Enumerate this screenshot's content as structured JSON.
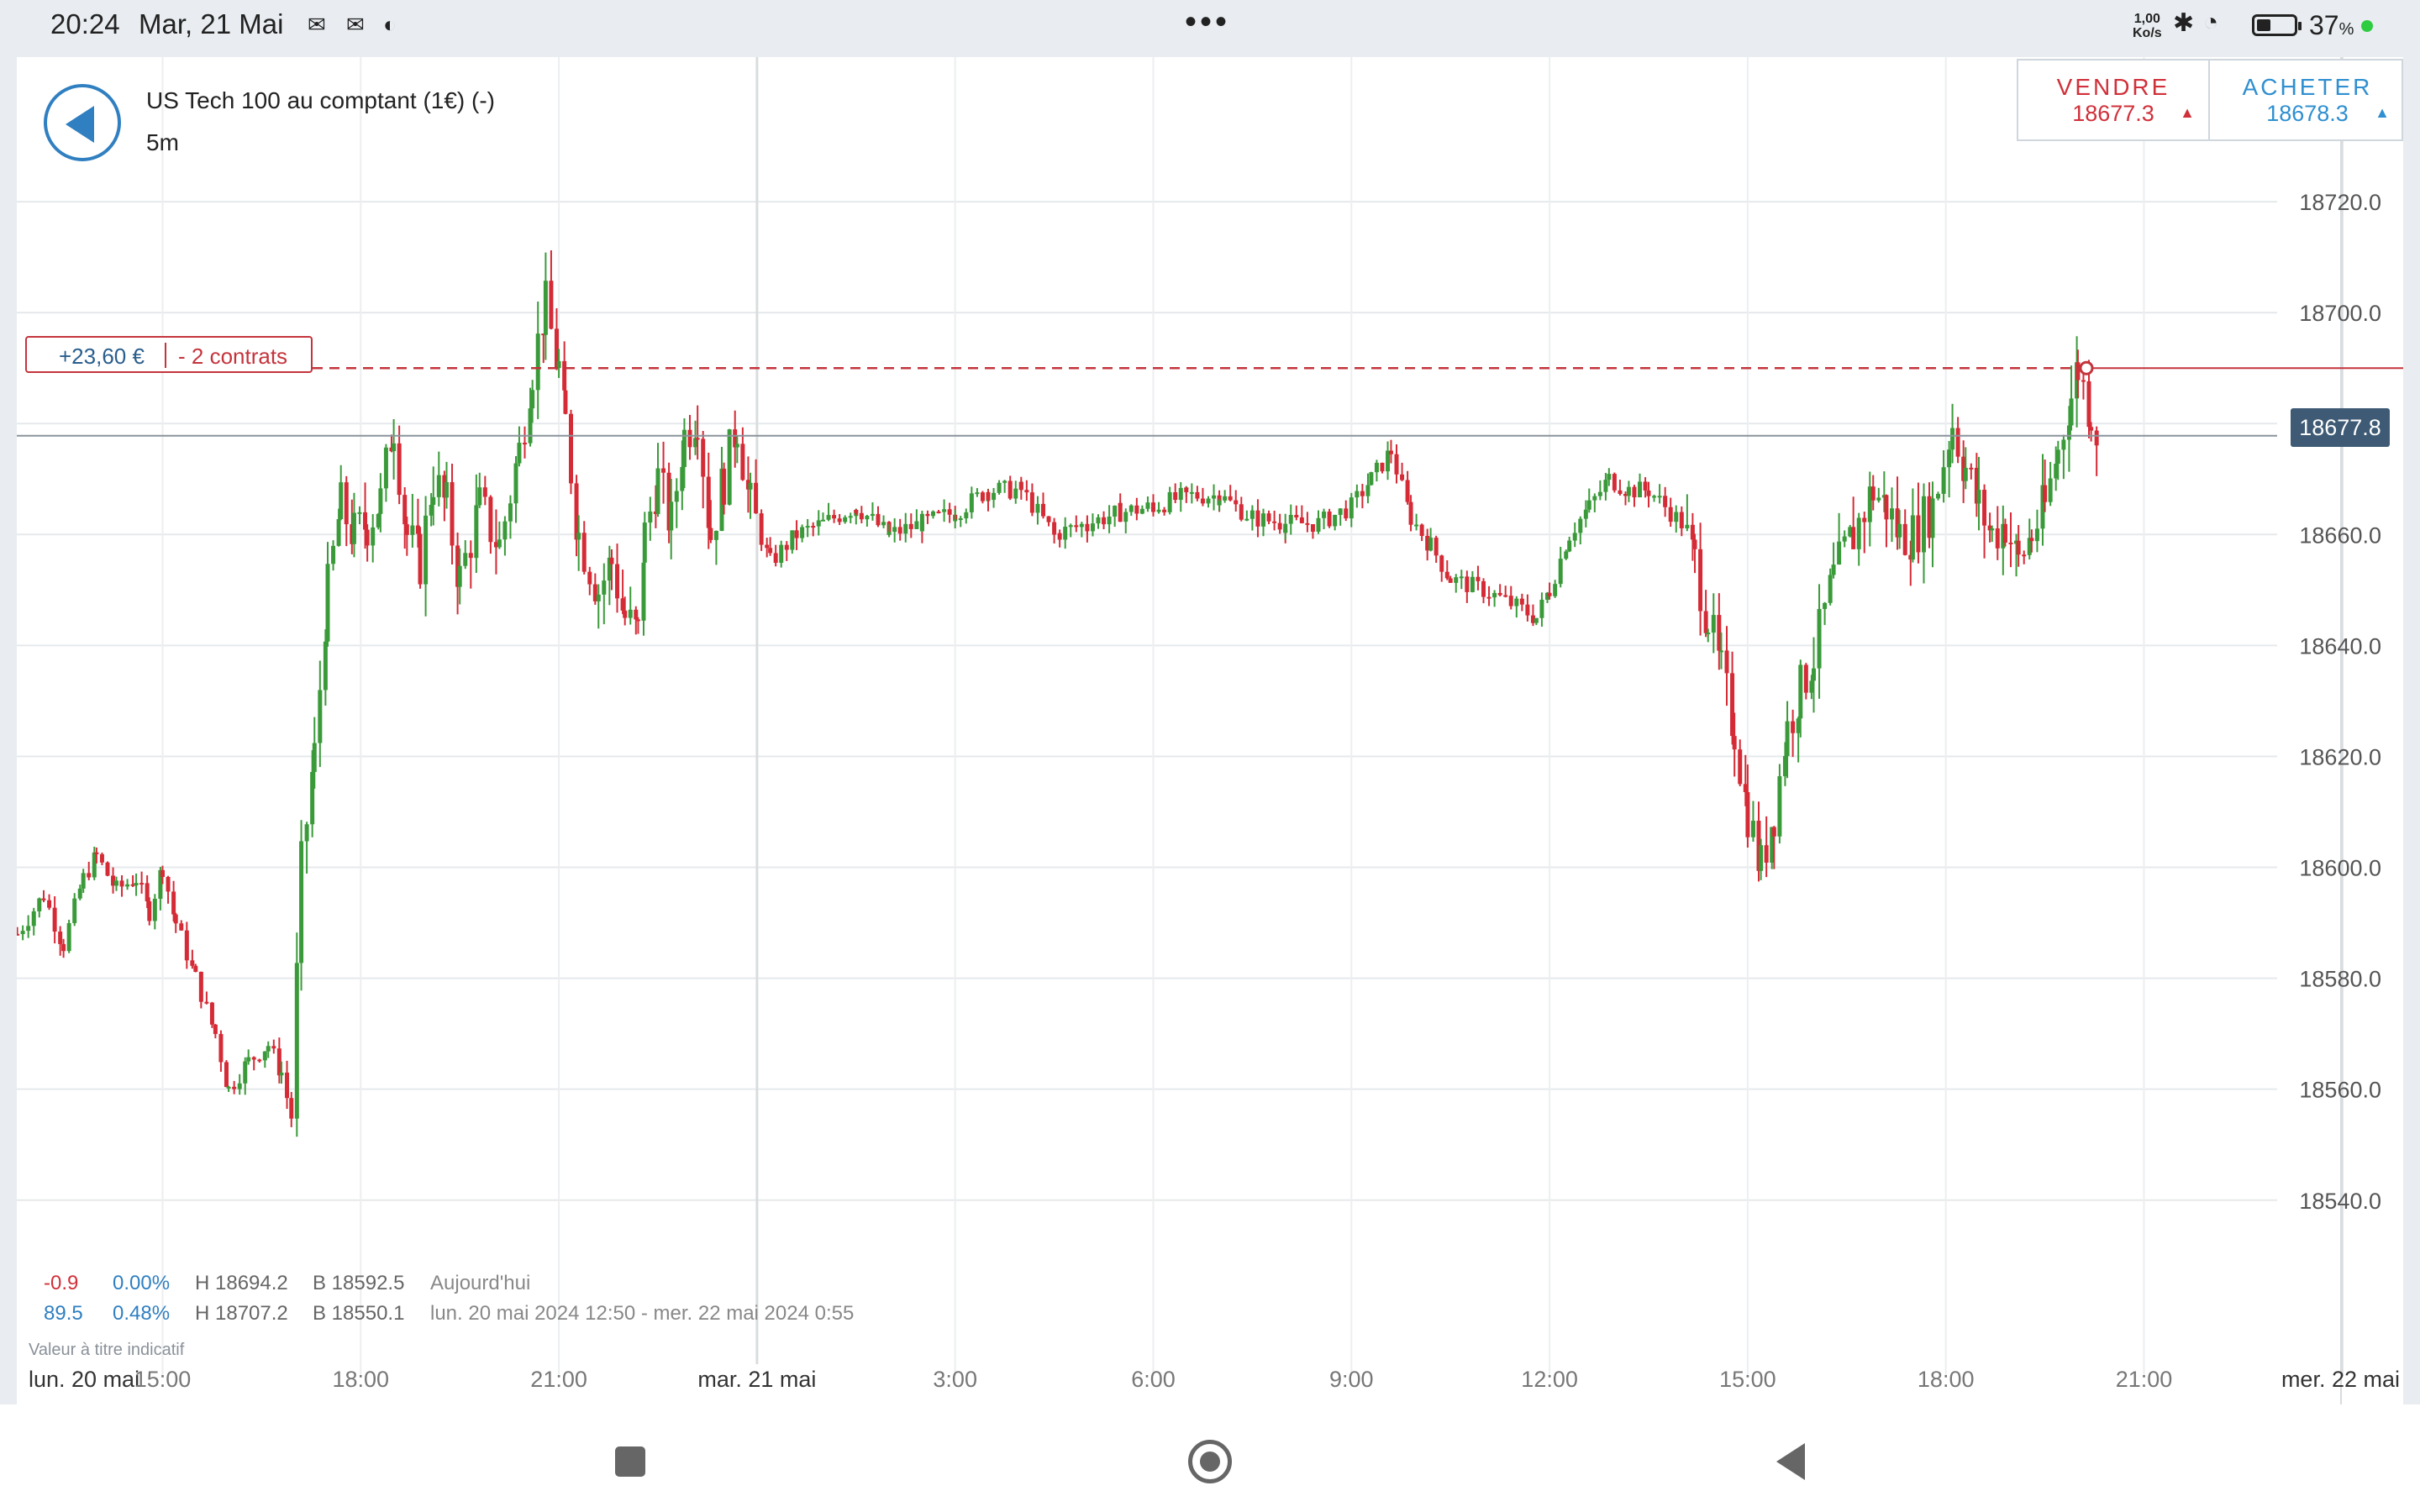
{
  "status_bar": {
    "time": "20:24",
    "date": "Mar, 21 Mai",
    "network_speed": "1,00",
    "network_unit": "Ko/s",
    "battery_percent": "37",
    "battery_unit": "%",
    "battery_level": 0.37
  },
  "header": {
    "instrument": "US Tech 100 au comptant (1€) (-)",
    "timeframe": "5m"
  },
  "trade": {
    "sell_label": "VENDRE",
    "sell_price": "18677.3",
    "buy_label": "ACHETER",
    "buy_price": "18678.3"
  },
  "position": {
    "pnl": "+23,60 €",
    "contracts": "- 2 contrats",
    "entry_level": 18690.0
  },
  "current_price": {
    "label": "18677.8",
    "value": 18677.8
  },
  "stats": {
    "row1": {
      "change": "-0.9",
      "pct": "0.00%",
      "high": "H 18694.2",
      "low": "B 18592.5",
      "period": "Aujourd'hui"
    },
    "row2": {
      "change": "89.5",
      "pct": "0.48%",
      "high": "H 18707.2",
      "low": "B 18550.1",
      "period": "lun. 20 mai 2024 12:50 - mer. 22 mai 2024 0:55"
    },
    "disclaimer": "Valeur à titre indicatif"
  },
  "colors": {
    "up": "#3a9a3a",
    "down": "#d42b36",
    "accent": "#2f7fc1",
    "price_badge": "#3e5a74"
  },
  "chart_data": {
    "type": "candlestick",
    "interval": "5m",
    "y_ticks": [
      "18720.0",
      "18700.0",
      "18680.0",
      "18660.0",
      "18640.0",
      "18620.0",
      "18600.0",
      "18580.0",
      "18560.0",
      "18540.0"
    ],
    "y_tick_values": [
      18720,
      18700,
      18680,
      18660,
      18640,
      18620,
      18600,
      18580,
      18560,
      18540
    ],
    "ylim": [
      18528,
      18740
    ],
    "x_ticks": [
      {
        "label": "lun. 20 mai",
        "hours": 0
      },
      {
        "label": "15:00",
        "hours": 15
      },
      {
        "label": "18:00",
        "hours": 18
      },
      {
        "label": "21:00",
        "hours": 21
      },
      {
        "label": "mar. 21 mai",
        "hours": 24
      },
      {
        "label": "3:00",
        "hours": 27
      },
      {
        "label": "6:00",
        "hours": 30
      },
      {
        "label": "9:00",
        "hours": 33
      },
      {
        "label": "12:00",
        "hours": 36
      },
      {
        "label": "15:00",
        "hours": 39
      },
      {
        "label": "18:00",
        "hours": 42
      },
      {
        "label": "21:00",
        "hours": 45
      },
      {
        "label": "mer. 22 mai",
        "hours": 48
      }
    ],
    "close_path": [
      [
        12.8,
        18588
      ],
      [
        13.2,
        18595
      ],
      [
        13.5,
        18586
      ],
      [
        13.8,
        18598
      ],
      [
        14.0,
        18602
      ],
      [
        14.3,
        18596
      ],
      [
        14.6,
        18598
      ],
      [
        14.8,
        18592
      ],
      [
        15.0,
        18600
      ],
      [
        15.2,
        18590
      ],
      [
        15.5,
        18580
      ],
      [
        15.8,
        18570
      ],
      [
        16.0,
        18560
      ],
      [
        16.3,
        18565
      ],
      [
        16.6,
        18568
      ],
      [
        16.8,
        18563
      ],
      [
        16.95,
        18555
      ],
      [
        17.1,
        18600
      ],
      [
        17.3,
        18620
      ],
      [
        17.5,
        18650
      ],
      [
        17.7,
        18665
      ],
      [
        17.9,
        18660
      ],
      [
        18.1,
        18662
      ],
      [
        18.3,
        18666
      ],
      [
        18.5,
        18680
      ],
      [
        18.7,
        18660
      ],
      [
        18.9,
        18655
      ],
      [
        19.1,
        18670
      ],
      [
        19.3,
        18665
      ],
      [
        19.5,
        18652
      ],
      [
        19.8,
        18665
      ],
      [
        20.1,
        18658
      ],
      [
        20.4,
        18675
      ],
      [
        20.6,
        18690
      ],
      [
        20.8,
        18701
      ],
      [
        21.0,
        18690
      ],
      [
        21.1,
        18680
      ],
      [
        21.3,
        18660
      ],
      [
        21.6,
        18650
      ],
      [
        21.8,
        18655
      ],
      [
        22.0,
        18645
      ],
      [
        22.2,
        18642
      ],
      [
        22.3,
        18660
      ],
      [
        22.5,
        18670
      ],
      [
        22.7,
        18662
      ],
      [
        22.9,
        18678
      ],
      [
        23.1,
        18682
      ],
      [
        23.3,
        18660
      ],
      [
        23.5,
        18670
      ],
      [
        23.7,
        18680
      ],
      [
        23.9,
        18665
      ],
      [
        24.2,
        18655
      ],
      [
        24.6,
        18660
      ],
      [
        25.0,
        18662
      ],
      [
        25.5,
        18665
      ],
      [
        26.0,
        18660
      ],
      [
        26.5,
        18662
      ],
      [
        27.0,
        18664
      ],
      [
        27.5,
        18668
      ],
      [
        28.0,
        18668
      ],
      [
        28.5,
        18660
      ],
      [
        29.0,
        18662
      ],
      [
        29.5,
        18664
      ],
      [
        30.0,
        18665
      ],
      [
        30.5,
        18667
      ],
      [
        31.0,
        18667
      ],
      [
        31.5,
        18663
      ],
      [
        32.0,
        18662
      ],
      [
        32.5,
        18662
      ],
      [
        33.0,
        18665
      ],
      [
        33.3,
        18670
      ],
      [
        33.6,
        18675
      ],
      [
        33.9,
        18663
      ],
      [
        34.2,
        18658
      ],
      [
        34.5,
        18652
      ],
      [
        35.0,
        18650
      ],
      [
        35.5,
        18647
      ],
      [
        35.8,
        18645
      ],
      [
        36.0,
        18650
      ],
      [
        36.3,
        18660
      ],
      [
        36.6,
        18665
      ],
      [
        36.9,
        18670
      ],
      [
        37.2,
        18668
      ],
      [
        37.5,
        18668
      ],
      [
        38.0,
        18662
      ],
      [
        38.2,
        18655
      ],
      [
        38.4,
        18645
      ],
      [
        38.6,
        18635
      ],
      [
        38.8,
        18625
      ],
      [
        39.0,
        18610
      ],
      [
        39.2,
        18600
      ],
      [
        39.4,
        18610
      ],
      [
        39.6,
        18625
      ],
      [
        39.8,
        18632
      ],
      [
        40.0,
        18638
      ],
      [
        40.3,
        18652
      ],
      [
        40.6,
        18660
      ],
      [
        40.9,
        18668
      ],
      [
        41.1,
        18665
      ],
      [
        41.3,
        18660
      ],
      [
        41.5,
        18660
      ],
      [
        41.8,
        18665
      ],
      [
        42.1,
        18680
      ],
      [
        42.3,
        18672
      ],
      [
        42.5,
        18665
      ],
      [
        42.7,
        18660
      ],
      [
        42.9,
        18662
      ],
      [
        43.1,
        18655
      ],
      [
        43.3,
        18660
      ],
      [
        43.5,
        18665
      ],
      [
        43.7,
        18675
      ],
      [
        43.9,
        18685
      ],
      [
        44.0,
        18690
      ],
      [
        44.2,
        18682
      ],
      [
        44.3,
        18678
      ]
    ]
  },
  "nav": {
    "square_icon": "recent-apps-icon",
    "home_icon": "home-icon",
    "back_icon": "back-icon"
  }
}
